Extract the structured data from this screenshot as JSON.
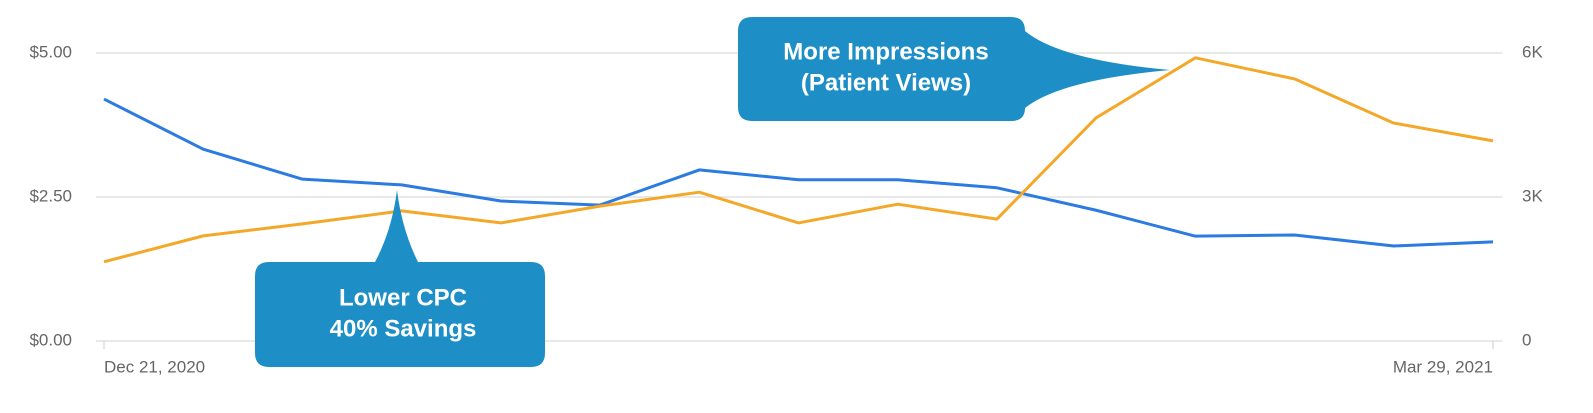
{
  "chart_data": {
    "type": "line",
    "x": [
      "Dec 21, 2020",
      null,
      null,
      null,
      null,
      null,
      null,
      null,
      null,
      null,
      null,
      null,
      null,
      null,
      "Mar 29, 2021"
    ],
    "series": [
      {
        "color": "#2b7be0",
        "axis": "y",
        "values": [
          4.2,
          3.33,
          2.81,
          2.71,
          2.43,
          2.36,
          2.97,
          2.8,
          2.8,
          2.66,
          2.27,
          1.82,
          1.84,
          1.65,
          1.72
        ]
      },
      {
        "color": "#f4a829",
        "axis": "y2",
        "values": [
          1650,
          2190,
          2440,
          2710,
          2460,
          2810,
          3100,
          2460,
          2850,
          2540,
          4650,
          5900,
          5460,
          4540,
          4170
        ]
      }
    ],
    "ylim": [
      0,
      5
    ],
    "yticks": [
      {
        "value": 0,
        "label": "$0.00"
      },
      {
        "value": 2.5,
        "label": "$2.50"
      },
      {
        "value": 5,
        "label": "$5.00"
      }
    ],
    "y2lim": [
      0,
      6000
    ],
    "y2ticks": [
      0,
      {
        "value": 3000,
        "label": "3K"
      },
      {
        "value": 6000,
        "label": "6K"
      }
    ],
    "grid": true,
    "annotations": [
      {
        "lines": [
          "More Impressions",
          "(Patient Views)"
        ],
        "color": "#1e8fc6"
      },
      {
        "lines": [
          "Lower CPC",
          "40% Savings"
        ],
        "color": "#1e8fc6"
      }
    ]
  }
}
